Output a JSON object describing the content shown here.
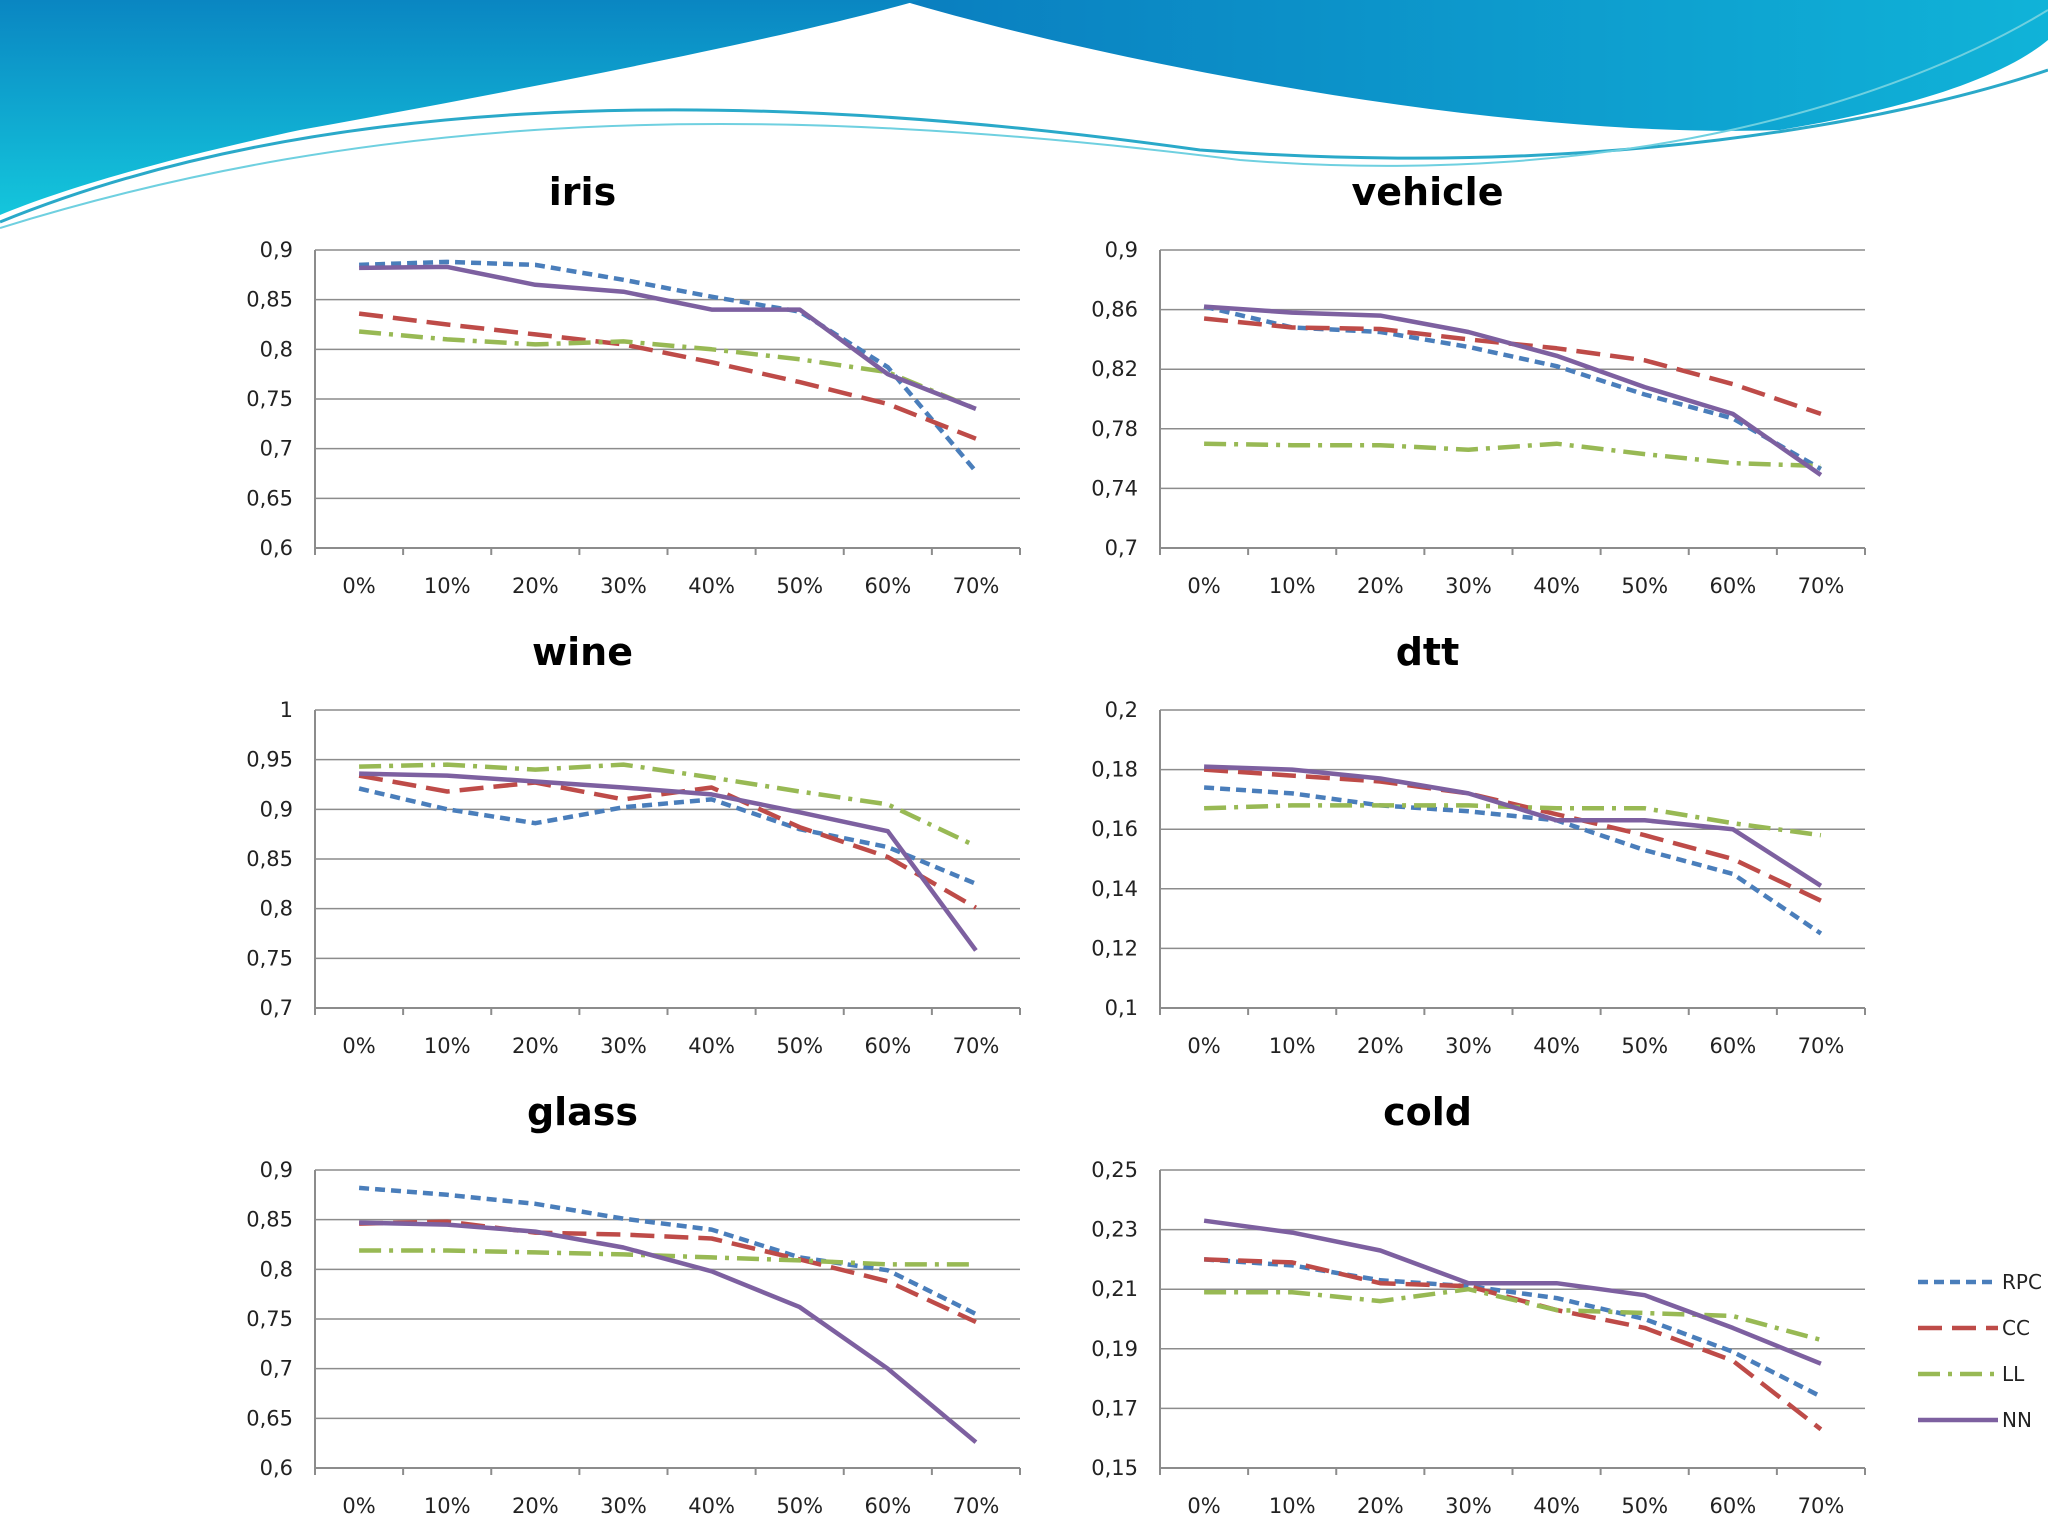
{
  "colors": {
    "RPC": "#4a7ebb",
    "CC": "#be4b48",
    "LL": "#98b954",
    "NN": "#7d60a0"
  },
  "legend": [
    {
      "name": "RPC",
      "dash": "10 6"
    },
    {
      "name": "CC",
      "dash": "24 10"
    },
    {
      "name": "LL",
      "dash": "22 8 4 8"
    },
    {
      "name": "NN",
      "dash": ""
    }
  ],
  "chart_data": [
    {
      "type": "line",
      "title": "iris",
      "categories": [
        "0%",
        "10%",
        "20%",
        "30%",
        "40%",
        "50%",
        "60%",
        "70%"
      ],
      "ylim": [
        0.6,
        0.9
      ],
      "yticks": [
        "0,6",
        "0,65",
        "0,7",
        "0,75",
        "0,8",
        "0,85",
        "0,9"
      ],
      "series": [
        {
          "name": "RPC",
          "values": [
            0.885,
            0.888,
            0.885,
            0.87,
            0.853,
            0.838,
            0.782,
            0.677
          ]
        },
        {
          "name": "CC",
          "values": [
            0.836,
            0.825,
            0.815,
            0.805,
            0.787,
            0.767,
            0.745,
            0.71
          ]
        },
        {
          "name": "LL",
          "values": [
            0.818,
            0.81,
            0.805,
            0.808,
            0.8,
            0.79,
            0.777,
            0.74
          ]
        },
        {
          "name": "NN",
          "values": [
            0.882,
            0.883,
            0.865,
            0.858,
            0.84,
            0.84,
            0.775,
            0.74
          ]
        }
      ]
    },
    {
      "type": "line",
      "title": "vehicle",
      "categories": [
        "0%",
        "10%",
        "20%",
        "30%",
        "40%",
        "50%",
        "60%",
        "70%"
      ],
      "ylim": [
        0.7,
        0.9
      ],
      "yticks": [
        "0,7",
        "0,74",
        "0,78",
        "0,82",
        "0,86",
        "0,9"
      ],
      "series": [
        {
          "name": "RPC",
          "values": [
            0.862,
            0.848,
            0.845,
            0.835,
            0.822,
            0.803,
            0.787,
            0.753
          ]
        },
        {
          "name": "CC",
          "values": [
            0.854,
            0.848,
            0.847,
            0.84,
            0.834,
            0.826,
            0.81,
            0.79
          ]
        },
        {
          "name": "LL",
          "values": [
            0.77,
            0.769,
            0.769,
            0.766,
            0.77,
            0.763,
            0.757,
            0.755
          ]
        },
        {
          "name": "NN",
          "values": [
            0.862,
            0.858,
            0.856,
            0.845,
            0.829,
            0.808,
            0.79,
            0.749
          ]
        }
      ]
    },
    {
      "type": "line",
      "title": "wine",
      "categories": [
        "0%",
        "10%",
        "20%",
        "30%",
        "40%",
        "50%",
        "60%",
        "70%"
      ],
      "ylim": [
        0.7,
        1.0
      ],
      "yticks": [
        "0,7",
        "0,75",
        "0,8",
        "0,85",
        "0,9",
        "0,95",
        "1"
      ],
      "series": [
        {
          "name": "RPC",
          "values": [
            0.921,
            0.9,
            0.886,
            0.902,
            0.91,
            0.88,
            0.862,
            0.825
          ]
        },
        {
          "name": "CC",
          "values": [
            0.934,
            0.918,
            0.927,
            0.91,
            0.922,
            0.882,
            0.852,
            0.801
          ]
        },
        {
          "name": "LL",
          "values": [
            0.943,
            0.945,
            0.94,
            0.945,
            0.932,
            0.918,
            0.905,
            0.863
          ]
        },
        {
          "name": "NN",
          "values": [
            0.936,
            0.934,
            0.928,
            0.922,
            0.915,
            0.897,
            0.878,
            0.758
          ]
        }
      ]
    },
    {
      "type": "line",
      "title": "dtt",
      "categories": [
        "0%",
        "10%",
        "20%",
        "30%",
        "40%",
        "50%",
        "60%",
        "70%"
      ],
      "ylim": [
        0.1,
        0.2
      ],
      "yticks": [
        "0,1",
        "0,12",
        "0,14",
        "0,16",
        "0,18",
        "0,2"
      ],
      "series": [
        {
          "name": "RPC",
          "values": [
            0.174,
            0.172,
            0.168,
            0.166,
            0.163,
            0.153,
            0.145,
            0.125
          ]
        },
        {
          "name": "CC",
          "values": [
            0.18,
            0.178,
            0.176,
            0.172,
            0.165,
            0.158,
            0.15,
            0.136
          ]
        },
        {
          "name": "LL",
          "values": [
            0.167,
            0.168,
            0.168,
            0.168,
            0.167,
            0.167,
            0.162,
            0.158
          ]
        },
        {
          "name": "NN",
          "values": [
            0.181,
            0.18,
            0.177,
            0.172,
            0.163,
            0.163,
            0.16,
            0.141
          ]
        }
      ]
    },
    {
      "type": "line",
      "title": "glass",
      "categories": [
        "0%",
        "10%",
        "20%",
        "30%",
        "40%",
        "50%",
        "60%",
        "70%"
      ],
      "ylim": [
        0.6,
        0.9
      ],
      "yticks": [
        "0,6",
        "0,65",
        "0,7",
        "0,75",
        "0,8",
        "0,85",
        "0,9"
      ],
      "series": [
        {
          "name": "RPC",
          "values": [
            0.882,
            0.875,
            0.866,
            0.851,
            0.84,
            0.812,
            0.799,
            0.755
          ]
        },
        {
          "name": "CC",
          "values": [
            0.846,
            0.848,
            0.837,
            0.835,
            0.831,
            0.81,
            0.788,
            0.747
          ]
        },
        {
          "name": "LL",
          "values": [
            0.819,
            0.819,
            0.817,
            0.815,
            0.812,
            0.809,
            0.805,
            0.805
          ]
        },
        {
          "name": "NN",
          "values": [
            0.847,
            0.845,
            0.838,
            0.822,
            0.798,
            0.762,
            0.7,
            0.626
          ]
        }
      ]
    },
    {
      "type": "line",
      "title": "cold",
      "categories": [
        "0%",
        "10%",
        "20%",
        "30%",
        "40%",
        "50%",
        "60%",
        "70%"
      ],
      "ylim": [
        0.15,
        0.25
      ],
      "yticks": [
        "0,15",
        "0,17",
        "0,19",
        "0,21",
        "0,23",
        "0,25"
      ],
      "series": [
        {
          "name": "RPC",
          "values": [
            0.22,
            0.218,
            0.213,
            0.211,
            0.207,
            0.2,
            0.189,
            0.174
          ]
        },
        {
          "name": "CC",
          "values": [
            0.22,
            0.219,
            0.212,
            0.211,
            0.203,
            0.197,
            0.186,
            0.163
          ]
        },
        {
          "name": "LL",
          "values": [
            0.209,
            0.209,
            0.206,
            0.21,
            0.203,
            0.202,
            0.201,
            0.193
          ]
        },
        {
          "name": "NN",
          "values": [
            0.233,
            0.229,
            0.223,
            0.212,
            0.212,
            0.208,
            0.197,
            0.185
          ]
        }
      ]
    }
  ]
}
